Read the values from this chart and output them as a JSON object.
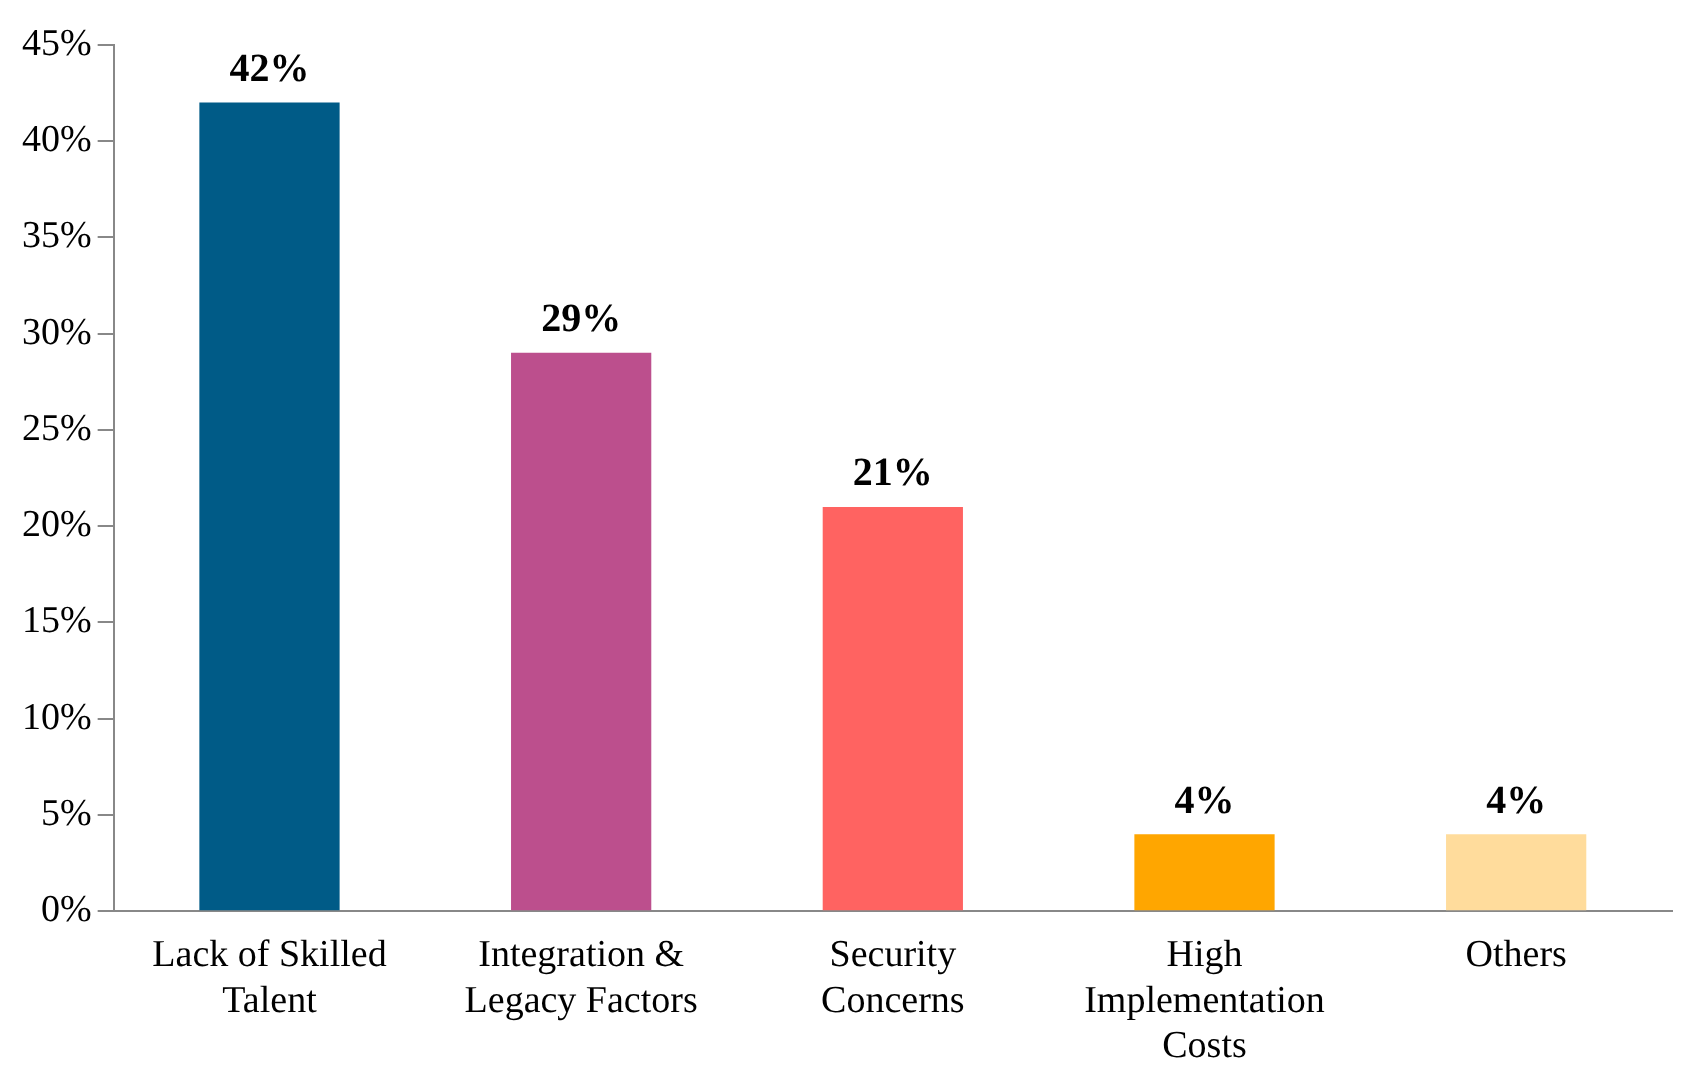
{
  "chart_data": {
    "type": "bar",
    "categories": [
      "Lack of Skilled Talent",
      "Integration & Legacy Factors",
      "Security Concerns",
      "High Implementation Costs",
      "Others"
    ],
    "values": [
      42,
      29,
      21,
      4,
      4
    ],
    "colors": [
      "#005b87",
      "#bc4f8d",
      "#ff6361",
      "#ffa600",
      "#ffdc9c"
    ],
    "value_labels": [
      "42%",
      "29%",
      "21%",
      "4%",
      "4%"
    ],
    "ylim": [
      0,
      45
    ],
    "yticks": [
      {
        "value": 0,
        "label": "0%"
      },
      {
        "value": 5,
        "label": "5%"
      },
      {
        "value": 10,
        "label": "10%"
      },
      {
        "value": 15,
        "label": "15%"
      },
      {
        "value": 20,
        "label": "20%"
      },
      {
        "value": 25,
        "label": "25%"
      },
      {
        "value": 30,
        "label": "30%"
      },
      {
        "value": 35,
        "label": "35%"
      },
      {
        "value": 40,
        "label": "40%"
      },
      {
        "value": 45,
        "label": "45%"
      }
    ],
    "grid": false,
    "legend": false
  }
}
